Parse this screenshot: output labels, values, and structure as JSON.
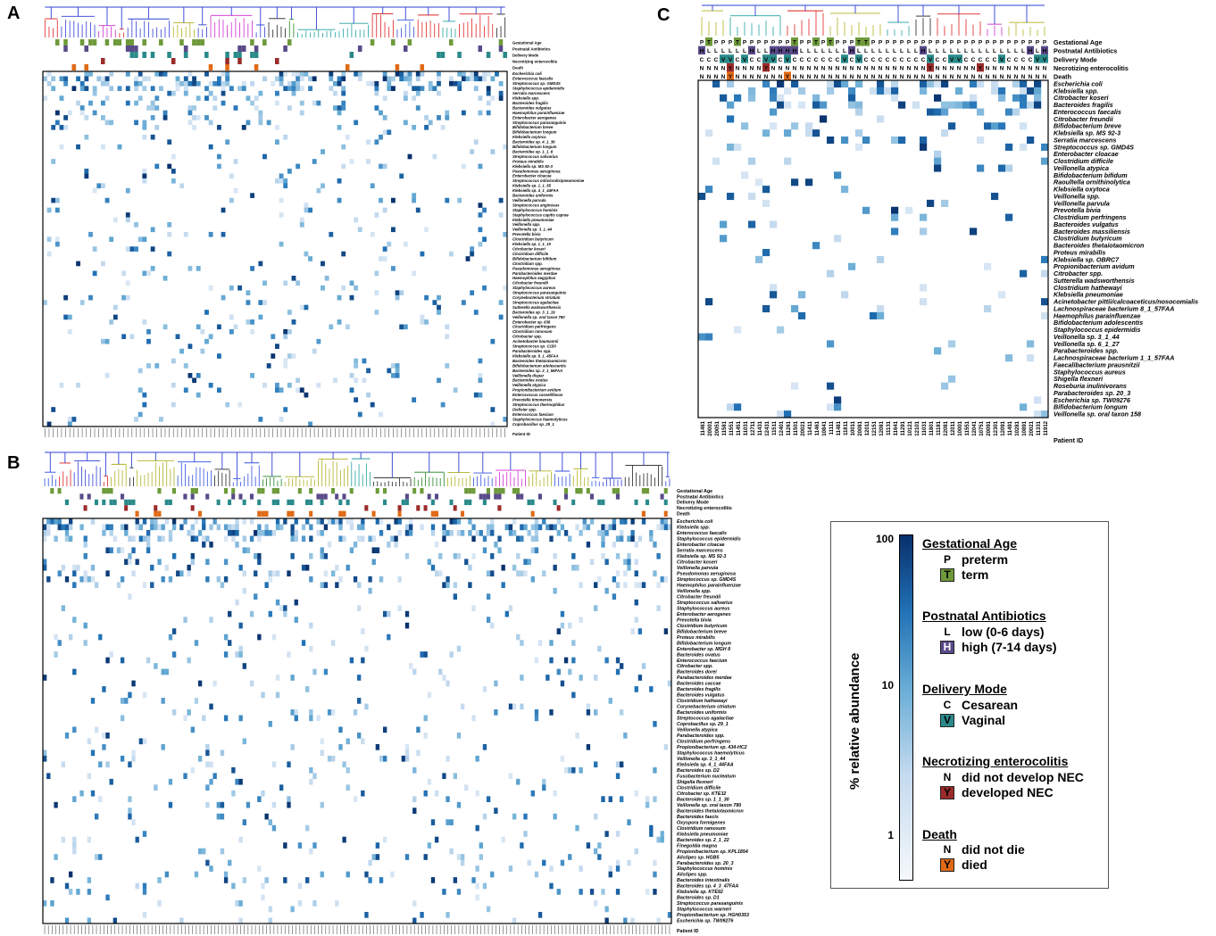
{
  "panel_labels": [
    "A",
    "B",
    "C"
  ],
  "chart_data": [
    {
      "panel": "A",
      "type": "heatmap",
      "row_labels": [
        "Escherichia coli",
        "Enterococcus faecalis",
        "Streptococcus sp. GMD4S",
        "Staphylococcus epidermidis",
        "Serratia marcescens",
        "Klebsiella spp.",
        "Bacteroides fragilis",
        "Bacteroides vulgatus",
        "Haemophilus parainfluenzae",
        "Enterobacter aerogenes",
        "Streptococcus parasanguinis",
        "Bifidobacterium breve",
        "Bifidobacterium longum",
        "Klebsiella oxytoca",
        "Bacteroides sp. 4_1_36",
        "Bifidobacterium longum",
        "Bacteroides sp. 1_1_6",
        "Streptococcus salivarius",
        "Proteus mirabilis",
        "Klebsiella sp. MS 92-3",
        "Pseudomonas aeruginosa",
        "Enterobacter cloacae",
        "Streptococcus mitis/oralis/pneumoniae",
        "Klebsiella sp. 1_1_55",
        "Klebsiella sp. 4_1_44FAA",
        "Bacteroides uniformis",
        "Veillonella parvula",
        "Streptococcus anginosus",
        "Staphylococcus hominis",
        "Staphylococcus capitis caprae",
        "Klebsiella pneumoniae",
        "Veillonella spp.",
        "Veillonella sp. 3_1_44",
        "Prevotella bivia",
        "Clostridium butyricum",
        "Klebsiella sp. 1_1_10",
        "Citrobacter koseri",
        "Clostridium difficile",
        "Bifidobacterium bifidum",
        "Clostridium spp.",
        "Pseudomonas aeruginosa",
        "Parabacteroides merdae",
        "Haemophilus aegyptius",
        "Citrobacter freundii",
        "Staphylococcus aureus",
        "Streptococcus parasanguinis",
        "Corynebacterium striatum",
        "Streptococcus agalactiae",
        "Sutterella wadsworthensis",
        "Bacteroides sp. 3_1_19",
        "Veillonella sp. oral taxon 780",
        "Enterobacter sp. 638",
        "Clostridium perfringens",
        "Clostridium ramosum",
        "Citrobacter spp.",
        "Acinetobacter baumannii",
        "Streptococcus sp. C150",
        "Parabacteroides spp.",
        "Klebsiella sp. 6_1_45FAA",
        "Bacteroides thetaiotaomicron",
        "Bifidobacterium adolescentis",
        "Bacteroides sp. 2_1_56FAA",
        "Veillonella dispar",
        "Bacteroides ovatus",
        "Veillonella atypica",
        "Propionibacterium avidum",
        "Enterococcus casseliflavus",
        "Prevotella timonensis",
        "Streptococcus thermophilus",
        "Dialister spp.",
        "Enterococcus faecium",
        "Staphylococcus haemolyticus",
        "Coprobacillus sp. 29_1"
      ],
      "n_columns": 112,
      "annotation_rows": [
        "Gestational Age",
        "Postnatal Antibiotics",
        "Delivery Mode",
        "Necrotizing enterocolitis",
        "Death"
      ],
      "annotation_values": [
        "P",
        "L",
        "C",
        "N",
        "N"
      ],
      "xlabel": "Patient ID",
      "color_scale": "log",
      "value_range": [
        1,
        100
      ]
    },
    {
      "panel": "B",
      "type": "heatmap",
      "row_labels": [
        "Escherichia coli",
        "Klebsiella spp.",
        "Enterococcus faecalis",
        "Staphylococcus epidermidis",
        "Enterobacter cloacae",
        "Serratia marcescens",
        "Klebsiella sp. MS 92-3",
        "Citrobacter koseri",
        "Veillonella parvula",
        "Pseudomonas aeruginosa",
        "Streptococcus sp. GMD4S",
        "Haemophilus parainfluenzae",
        "Veillonella spp.",
        "Citrobacter freundii",
        "Streptococcus salivarius",
        "Staphylococcus aureus",
        "Enterobacter aerogenes",
        "Prevotella bivia",
        "Clostridium butyricum",
        "Bifidobacterium breve",
        "Proteus mirabilis",
        "Bifidobacterium longum",
        "Enterobacter sp. MGH 8",
        "Bacteroides ovatus",
        "Enterococcus faecium",
        "Citrobacter spp.",
        "Bacteroides dorei",
        "Parabacteroides merdae",
        "Bacteroides caccae",
        "Bacteroides fragilis",
        "Bacteroides vulgatus",
        "Clostridium hathewayi",
        "Corynebacterium striatum",
        "Bacteroides uniformis",
        "Streptococcus agalactiae",
        "Coprobacillus sp. 29_1",
        "Veillonella atypica",
        "Parabacteroides spp.",
        "Clostridium perfringens",
        "Propionibacterium sp. 434-HC2",
        "Staphylococcus haemolyticus",
        "Veillonella sp. 3_1_44",
        "Klebsiella sp. 4_1_44FAA",
        "Bacteroides sp. D2",
        "Fusobacterium nucleatum",
        "Shigella flexneri",
        "Clostridium difficile",
        "Citrobacter sp. KTE32",
        "Bacteroides sp. 1_1_30",
        "Veillonella sp. oral taxon 780",
        "Bacteroides thetaiotaomicron",
        "Bacteroides faecis",
        "Oxyspora formigenes",
        "Clostridium ramosum",
        "Klebsiella pneumoniae",
        "Bacteroides sp. 2_1_22",
        "Finegoldia magna",
        "Propionibacterium sp. KPL1854",
        "Alistipes sp. HGB5",
        "Parabacteroides sp. 20_3",
        "Staphylococcus hominis",
        "Alistipes spp.",
        "Bacteroides intestinalis",
        "Bacteroides sp. 4_3_47FAA",
        "Klebsiella sp. KTE92",
        "Bacteroides sp. D1",
        "Streptococcus parasanguinis",
        "Staphylococcus warneri",
        "Propionibacterium sp. HGH0353",
        "Escherichia sp. TW09276"
      ],
      "n_columns": 170,
      "annotation_rows": [
        "Gestational Age",
        "Postnatal Antibiotics",
        "Delivery Mode",
        "Necrotizing enterocolitis",
        "Death"
      ],
      "xlabel": "Patient ID",
      "color_scale": "log",
      "value_range": [
        1,
        100
      ]
    },
    {
      "panel": "C",
      "type": "heatmap",
      "row_labels": [
        "Escherichia coli",
        "Klebsiella spp.",
        "Citrobacter koseri",
        "Bacteroides fragilis",
        "Enterococcus faecalis",
        "Citrobacter freundii",
        "Bifidobacterium breve",
        "Klebsiella sp. MS 92-3",
        "Serratia marcescens",
        "Streptococcus sp. GMD4S",
        "Enterobacter cloacae",
        "Clostridium difficile",
        "Veillonella atypica",
        "Bifidobacterium bifidum",
        "Raoultella ornithinolytica",
        "Klebsiella oxytoca",
        "Veillonella spp.",
        "Veillonella parvula",
        "Prevotella bivia",
        "Clostridium perfringens",
        "Bacteroides vulgatus",
        "Bacteroides massiliensis",
        "Clostridium butyricum",
        "Bacteroides thetaiotaomicron",
        "Proteus mirabilis",
        "Klebsiella sp. OBRC7",
        "Propionibacterium avidum",
        "Citrobacter spp.",
        "Sutterella wadsworthensis",
        "Clostridium hathewayi",
        "Klebsiella pneumoniae",
        "Acinetobacter pittii/calcoaceticus/nosocomialis",
        "Lachnospiraceae bacterium 8_1_57FAA",
        "Haemophilus parainfluenzae",
        "Bifidobacterium adolescentis",
        "Staphylococcus epidermidis",
        "Veillonella sp. 3_1_44",
        "Veillonella sp. 6_1_27",
        "Parabacteroides spp.",
        "Lachnospiraceae bacterium 1_1_57FAA",
        "Faecalibacterium prausnitzii",
        "Staphylococcus aureus",
        "Shigella flexneri",
        "Roseburia inulinivorans",
        "Parabacteroides sp. 20_3",
        "Escherichia sp. TW09276",
        "Bifidobacterium longum",
        "Veillonella sp. oral taxon 158"
      ],
      "n_columns": 49,
      "annotation_rows": [
        "Gestational Age",
        "Postnatal Antibiotics",
        "Delivery Mode",
        "Necrotizing enterocolitis",
        "Death"
      ],
      "annotation_values": [
        [
          "P",
          "T",
          "P",
          "P",
          "P",
          "T",
          "P",
          "P",
          "P",
          "P",
          "P",
          "P",
          "P",
          "T",
          "P",
          "P",
          "T",
          "P",
          "T",
          "P",
          "P",
          "P",
          "T",
          "T",
          "P",
          "P",
          "P",
          "P",
          "P",
          "P",
          "P",
          "P",
          "P",
          "P",
          "P",
          "P",
          "P",
          "P",
          "P",
          "P",
          "P",
          "P",
          "P",
          "P",
          "P",
          "P",
          "P",
          "P",
          "P"
        ],
        [
          "H",
          "L",
          "L",
          "L",
          "L",
          "L",
          "L",
          "H",
          "L",
          "L",
          "H",
          "H",
          "H",
          "H",
          "L",
          "L",
          "L",
          "L",
          "L",
          "L",
          "L",
          "H",
          "L",
          "L",
          "L",
          "L",
          "L",
          "L",
          "L",
          "L",
          "L",
          "H",
          "L",
          "L",
          "L",
          "L",
          "L",
          "L",
          "L",
          "L",
          "L",
          "L",
          "L",
          "L",
          "L",
          "L",
          "H",
          "L",
          "H"
        ],
        [
          "C",
          "C",
          "C",
          "V",
          "V",
          "C",
          "V",
          "C",
          "C",
          "V",
          "V",
          "C",
          "V",
          "C",
          "C",
          "C",
          "C",
          "C",
          "C",
          "C",
          "V",
          "C",
          "V",
          "C",
          "C",
          "C",
          "C",
          "C",
          "C",
          "C",
          "C",
          "C",
          "V",
          "C",
          "C",
          "V",
          "V",
          "C",
          "C",
          "C",
          "C",
          "C",
          "V",
          "C",
          "C",
          "C",
          "C",
          "V",
          "V"
        ],
        [
          "N",
          "N",
          "N",
          "N",
          "Y",
          "N",
          "N",
          "N",
          "N",
          "Y",
          "N",
          "N",
          "N",
          "N",
          "N",
          "N",
          "N",
          "N",
          "N",
          "N",
          "N",
          "N",
          "N",
          "N",
          "N",
          "N",
          "N",
          "N",
          "N",
          "N",
          "N",
          "N",
          "Y",
          "N",
          "N",
          "N",
          "N",
          "N",
          "N",
          "Y",
          "N",
          "N",
          "N",
          "N",
          "N",
          "N",
          "N",
          "N",
          "N"
        ],
        [
          "N",
          "N",
          "N",
          "N",
          "Y",
          "N",
          "N",
          "N",
          "N",
          "N",
          "N",
          "N",
          "Y",
          "N",
          "N",
          "N",
          "N",
          "N",
          "N",
          "N",
          "N",
          "N",
          "N",
          "N",
          "N",
          "N",
          "N",
          "N",
          "N",
          "N",
          "N",
          "N",
          "N",
          "N",
          "N",
          "N",
          "N",
          "N",
          "N",
          "N",
          "N",
          "N",
          "N",
          "N",
          "N",
          "N",
          "N",
          "N",
          "N"
        ]
      ],
      "column_labels": [
        "11461",
        "20001",
        "20051",
        "11581",
        "11551",
        "11451",
        "11031",
        "12711",
        "11431",
        "12431",
        "11511",
        "12401",
        "11261",
        "11501",
        "20021",
        "11411",
        "11461",
        "10841",
        "11111",
        "11481",
        "11811",
        "10011",
        "20081",
        "12011",
        "12151",
        "12081",
        "11131",
        "11641",
        "11291",
        "10121",
        "12101",
        "11031",
        "11801",
        "11181",
        "12081",
        "12011",
        "10001",
        "11551",
        "12041",
        "10751",
        "20091",
        "12301",
        "12091",
        "11491",
        "10281",
        "10891",
        "20021",
        "11331",
        "11912"
      ],
      "xlabel": "Patient ID",
      "color_scale": "log",
      "value_range": [
        1,
        100
      ]
    }
  ],
  "legend": {
    "colorbar_label": "% relative abundance",
    "ticks": [
      "100",
      "10",
      "1"
    ],
    "colors": {
      "low": "#f5f8fc",
      "mid": "#6baed6",
      "high": "#08306b",
      "term": "#6e9a3b",
      "high_abx": "#5a4a8a",
      "vaginal": "#2a8a8a",
      "nec": "#9b2a2a",
      "died": "#e06a16"
    },
    "groups": [
      {
        "title": "Gestational Age",
        "items": [
          {
            "code": "P",
            "text": "preterm"
          },
          {
            "code": "T",
            "text": "term"
          }
        ]
      },
      {
        "title": "Postnatal Antibiotics",
        "items": [
          {
            "code": "L",
            "text": "low (0-6 days)"
          },
          {
            "code": "H",
            "text": "high (7-14 days)"
          }
        ]
      },
      {
        "title": "Delivery Mode",
        "items": [
          {
            "code": "C",
            "text": "Cesarean"
          },
          {
            "code": "V",
            "text": "Vaginal"
          }
        ]
      },
      {
        "title": "Necrotizing enterocolitis",
        "items": [
          {
            "code": "N",
            "text": "did not develop NEC"
          },
          {
            "code": "Y",
            "text": "developed NEC"
          }
        ]
      },
      {
        "title": "Death",
        "items": [
          {
            "code": "N",
            "text": "did not die"
          },
          {
            "code": "Y",
            "text": "died"
          }
        ]
      }
    ]
  }
}
